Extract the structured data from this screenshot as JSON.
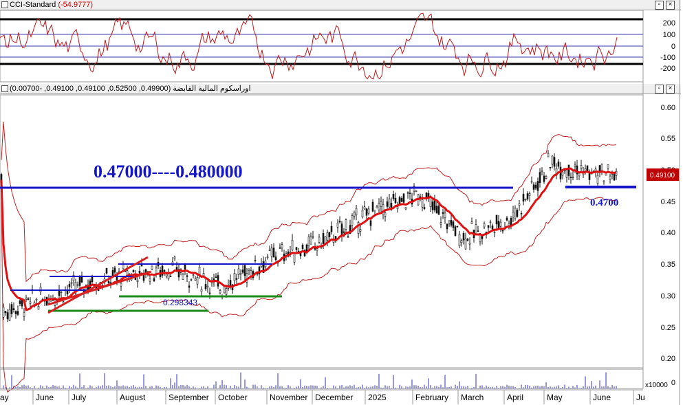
{
  "cci_panel": {
    "title": "CCI-Standard",
    "value": "(-54.9777)",
    "ticks": [
      "200",
      "100",
      "0",
      "-100",
      "-200"
    ]
  },
  "price_panel": {
    "title": "اوراسكوم المالية القابضة",
    "ohlc": "(0.49900, 0.52500, 0.49100, 0.49100, -0.00700)",
    "ticks": [
      "0.60",
      "0.55",
      "0.50",
      "0.45",
      "0.40",
      "0.35",
      "0.30",
      "0.25",
      "0.20"
    ],
    "last_price": "0.49100",
    "annotation_range": "0.47000----0.480000",
    "annotation_support": "0.4700",
    "annotation_green": "0.298343"
  },
  "volume_panel": {
    "label": "x10000",
    "tick": "0"
  },
  "x_axis": {
    "months": [
      "ay",
      "June",
      "July",
      "August",
      "September",
      "October",
      "November",
      "December",
      "2025",
      "February",
      "March",
      "April",
      "May",
      "June",
      "Ju"
    ]
  },
  "colors": {
    "cci_line": "#c0181c",
    "price_line": "#111111",
    "ma": "#e01010",
    "bands": "#c02020",
    "level_blue": "#1515c8",
    "level_green": "#1a8a1a",
    "last_price_bg": "#c00000"
  },
  "chart_data": {
    "type": "candlestick",
    "ylim": [
      0.18,
      0.62
    ],
    "horizontal_levels": [
      0.47,
      0.298343,
      0.275,
      0.33,
      0.35,
      0.31
    ],
    "approx_close_path": [
      {
        "x": "May-2024",
        "y": 0.27
      },
      {
        "x": "June",
        "y": 0.29
      },
      {
        "x": "July",
        "y": 0.31
      },
      {
        "x": "August",
        "y": 0.33
      },
      {
        "x": "September",
        "y": 0.34
      },
      {
        "x": "October",
        "y": 0.31
      },
      {
        "x": "November",
        "y": 0.36
      },
      {
        "x": "December",
        "y": 0.38
      },
      {
        "x": "2025",
        "y": 0.43
      },
      {
        "x": "February",
        "y": 0.46
      },
      {
        "x": "March",
        "y": 0.39
      },
      {
        "x": "April",
        "y": 0.42
      },
      {
        "x": "May",
        "y": 0.51
      },
      {
        "x": "June",
        "y": 0.491
      }
    ],
    "cci_ylim": [
      -250,
      250
    ]
  }
}
